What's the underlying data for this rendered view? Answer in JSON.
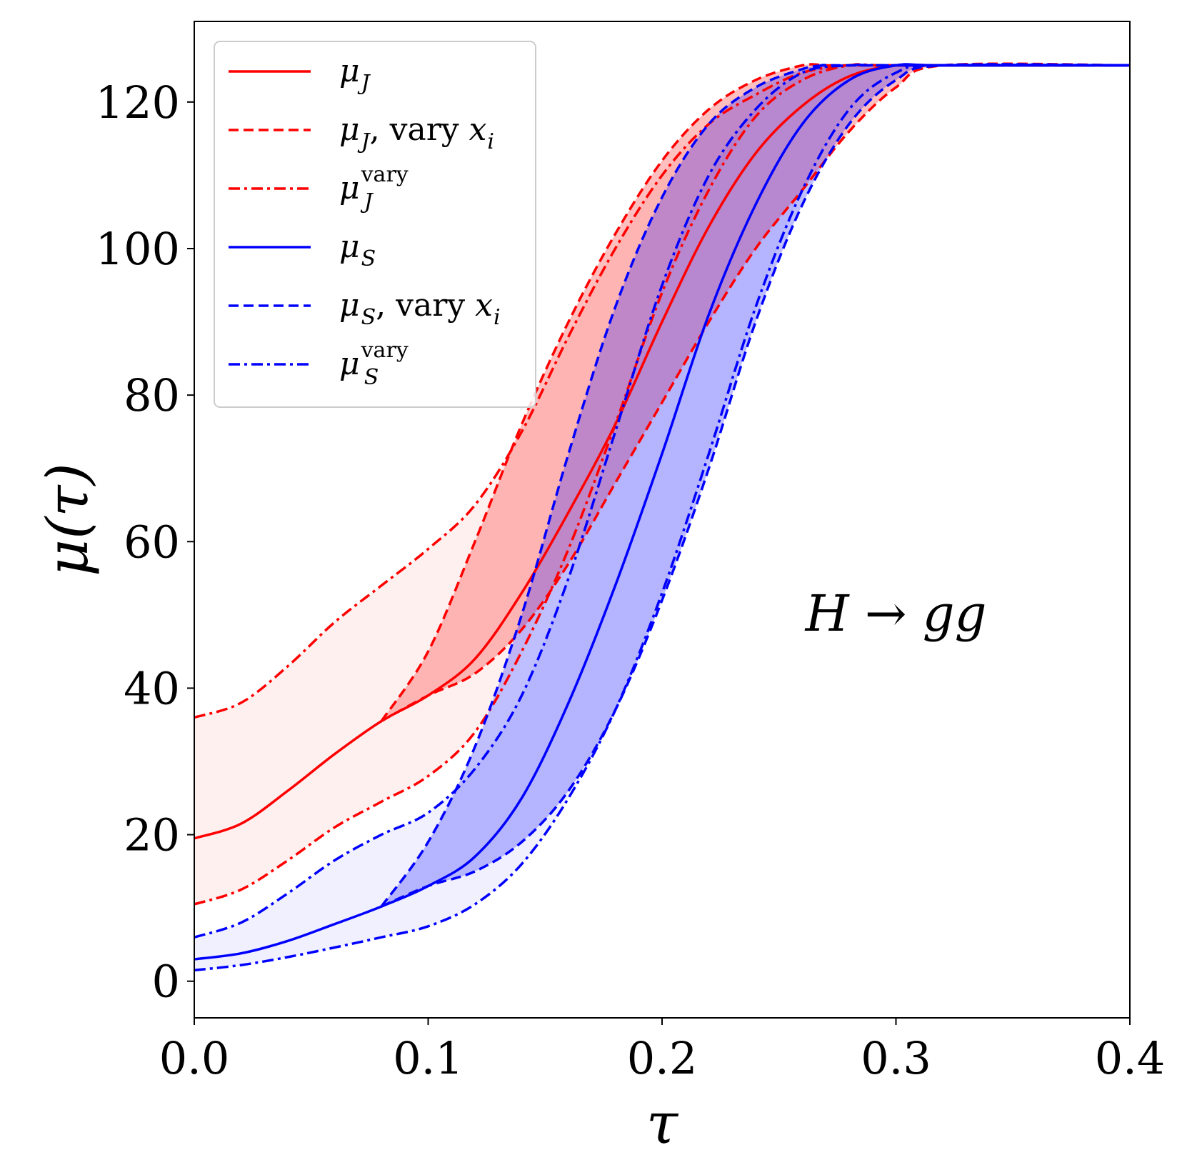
{
  "chart_data": {
    "type": "line",
    "title": "",
    "xlabel": "τ",
    "ylabel": "μ(τ)",
    "xlim": [
      0.0,
      0.4
    ],
    "ylim": [
      -5,
      131
    ],
    "grid": false,
    "legend_placement": "top-left",
    "xticks": [
      0.0,
      0.1,
      0.2,
      0.3,
      0.4
    ],
    "xtick_labels": [
      "0.0",
      "0.1",
      "0.2",
      "0.3",
      "0.4"
    ],
    "yticks": [
      0,
      20,
      40,
      60,
      80,
      100,
      120
    ],
    "ytick_labels": [
      "0",
      "20",
      "40",
      "60",
      "80",
      "100",
      "120"
    ],
    "annotation": "H → gg",
    "colors": {
      "J": "#ff0000",
      "S": "#0000ff"
    },
    "series": [
      {
        "name": "μ_J",
        "color": "#ff0000",
        "style": "solid",
        "x": [
          0,
          0.02,
          0.04,
          0.06,
          0.08,
          0.1,
          0.12,
          0.14,
          0.16,
          0.18,
          0.2,
          0.22,
          0.24,
          0.26,
          0.28,
          0.3,
          0.32,
          0.4
        ],
        "y": [
          19.5,
          21.5,
          26,
          31,
          35.5,
          39,
          44,
          53,
          64,
          76,
          90,
          103,
          113,
          119.5,
          123.5,
          125,
          125,
          125
        ]
      },
      {
        "name": "μ_J, vary x_i (upper)",
        "color": "#ff0000",
        "style": "dashed",
        "x": [
          0.08,
          0.1,
          0.12,
          0.14,
          0.16,
          0.18,
          0.2,
          0.22,
          0.24,
          0.26,
          0.27,
          0.28,
          0.4
        ],
        "y": [
          35.5,
          45,
          60,
          76,
          90,
          102,
          112,
          119,
          123,
          125,
          125,
          125,
          125
        ]
      },
      {
        "name": "μ_J, vary x_i (lower)",
        "color": "#ff0000",
        "style": "dashed",
        "x": [
          0.08,
          0.1,
          0.12,
          0.14,
          0.16,
          0.18,
          0.2,
          0.22,
          0.24,
          0.26,
          0.28,
          0.3,
          0.32,
          0.4
        ],
        "y": [
          35.5,
          39,
          42,
          48,
          57,
          68,
          79,
          90,
          100,
          108,
          116,
          122,
          125,
          125
        ]
      },
      {
        "name": "μ_J^vary (upper)",
        "color": "#ff0000",
        "style": "dashdot",
        "x": [
          0,
          0.02,
          0.04,
          0.06,
          0.08,
          0.1,
          0.12,
          0.14,
          0.16,
          0.18,
          0.2,
          0.22,
          0.24,
          0.26,
          0.28,
          0.3,
          0.4
        ],
        "y": [
          36,
          38,
          43,
          49,
          54,
          59,
          65,
          75,
          88,
          100,
          110,
          117,
          121,
          124,
          125,
          125,
          125
        ]
      },
      {
        "name": "μ_J^vary (lower)",
        "color": "#ff0000",
        "style": "dashdot",
        "x": [
          0,
          0.02,
          0.04,
          0.06,
          0.08,
          0.1,
          0.12,
          0.14,
          0.16,
          0.18,
          0.2,
          0.22,
          0.24,
          0.26,
          0.28,
          0.3,
          0.4
        ],
        "y": [
          10.5,
          12.5,
          16.5,
          21,
          24.5,
          28,
          34,
          45,
          59,
          76,
          94,
          108,
          118,
          123,
          125,
          125,
          125
        ]
      },
      {
        "name": "μ_S",
        "color": "#0000ff",
        "style": "solid",
        "x": [
          0,
          0.02,
          0.04,
          0.06,
          0.08,
          0.1,
          0.12,
          0.14,
          0.16,
          0.18,
          0.2,
          0.22,
          0.24,
          0.26,
          0.28,
          0.3,
          0.32,
          0.4
        ],
        "y": [
          3,
          3.8,
          5.5,
          7.8,
          10.2,
          13,
          17,
          25,
          38,
          54,
          72,
          91,
          106,
          117,
          123,
          125,
          125,
          125
        ]
      },
      {
        "name": "μ_S, vary x_i (upper)",
        "color": "#0000ff",
        "style": "dashed",
        "x": [
          0.08,
          0.1,
          0.12,
          0.14,
          0.16,
          0.18,
          0.2,
          0.22,
          0.24,
          0.26,
          0.27,
          0.28,
          0.4
        ],
        "y": [
          10.2,
          19,
          32,
          50,
          72,
          92,
          107,
          117,
          122,
          124.5,
          125,
          125,
          125
        ]
      },
      {
        "name": "μ_S, vary x_i (lower)",
        "color": "#0000ff",
        "style": "dashed",
        "x": [
          0.08,
          0.1,
          0.12,
          0.14,
          0.16,
          0.18,
          0.2,
          0.22,
          0.24,
          0.26,
          0.28,
          0.3,
          0.32,
          0.4
        ],
        "y": [
          10.2,
          13,
          15,
          19,
          26,
          37,
          52,
          70,
          90,
          106,
          117,
          123,
          125,
          125
        ]
      },
      {
        "name": "μ_S^vary (upper)",
        "color": "#0000ff",
        "style": "dashdot",
        "x": [
          0,
          0.02,
          0.04,
          0.06,
          0.08,
          0.1,
          0.12,
          0.14,
          0.16,
          0.18,
          0.2,
          0.22,
          0.24,
          0.26,
          0.28,
          0.3,
          0.4
        ],
        "y": [
          6,
          8,
          12,
          16.5,
          20,
          23,
          29,
          39,
          55,
          75,
          95,
          110,
          119,
          124,
          125,
          125,
          125
        ]
      },
      {
        "name": "μ_S^vary (lower)",
        "color": "#0000ff",
        "style": "dashdot",
        "x": [
          0,
          0.02,
          0.04,
          0.06,
          0.08,
          0.1,
          0.12,
          0.14,
          0.16,
          0.18,
          0.2,
          0.22,
          0.24,
          0.26,
          0.28,
          0.3,
          0.32,
          0.4
        ],
        "y": [
          1.5,
          2.2,
          3.3,
          4.6,
          6,
          7.5,
          10.5,
          16,
          25,
          37,
          53,
          72,
          92,
          108,
          119,
          124,
          125,
          125
        ]
      }
    ],
    "bands": [
      {
        "name": "J vary x_i band",
        "color": "#ff0000",
        "opacity": 0.25,
        "upper": "μ_J, vary x_i (upper)",
        "lower": "μ_J, vary x_i (lower)"
      },
      {
        "name": "J vary band",
        "color": "#ff0000",
        "opacity": 0.06,
        "upper": "μ_J^vary (upper)",
        "lower": "μ_J^vary (lower)"
      },
      {
        "name": "S vary x_i band",
        "color": "#0000ff",
        "opacity": 0.25,
        "upper": "μ_S, vary x_i (upper)",
        "lower": "μ_S, vary x_i (lower)"
      },
      {
        "name": "S vary band",
        "color": "#0000ff",
        "opacity": 0.06,
        "upper": "μ_S^vary (upper)",
        "lower": "μ_S^vary (lower)"
      }
    ],
    "legend": [
      {
        "base": "μ",
        "sub": "J",
        "sup": "",
        "suffix_text": "",
        "suffix_var": "",
        "suffix_sub": "",
        "color": "#ff0000",
        "style": "solid"
      },
      {
        "base": "μ",
        "sub": "J",
        "sup": "",
        "suffix_text": ", vary ",
        "suffix_var": "x",
        "suffix_sub": "i",
        "color": "#ff0000",
        "style": "dashed"
      },
      {
        "base": "μ",
        "sub": "J",
        "sup": "vary",
        "suffix_text": "",
        "suffix_var": "",
        "suffix_sub": "",
        "color": "#ff0000",
        "style": "dashdot"
      },
      {
        "base": "μ",
        "sub": "S",
        "sup": "",
        "suffix_text": "",
        "suffix_var": "",
        "suffix_sub": "",
        "color": "#0000ff",
        "style": "solid"
      },
      {
        "base": "μ",
        "sub": "S",
        "sup": "",
        "suffix_text": ", vary ",
        "suffix_var": "x",
        "suffix_sub": "i",
        "color": "#0000ff",
        "style": "dashed"
      },
      {
        "base": "μ",
        "sub": "S",
        "sup": "vary",
        "suffix_text": "",
        "suffix_var": "",
        "suffix_sub": "",
        "color": "#0000ff",
        "style": "dashdot"
      }
    ]
  }
}
